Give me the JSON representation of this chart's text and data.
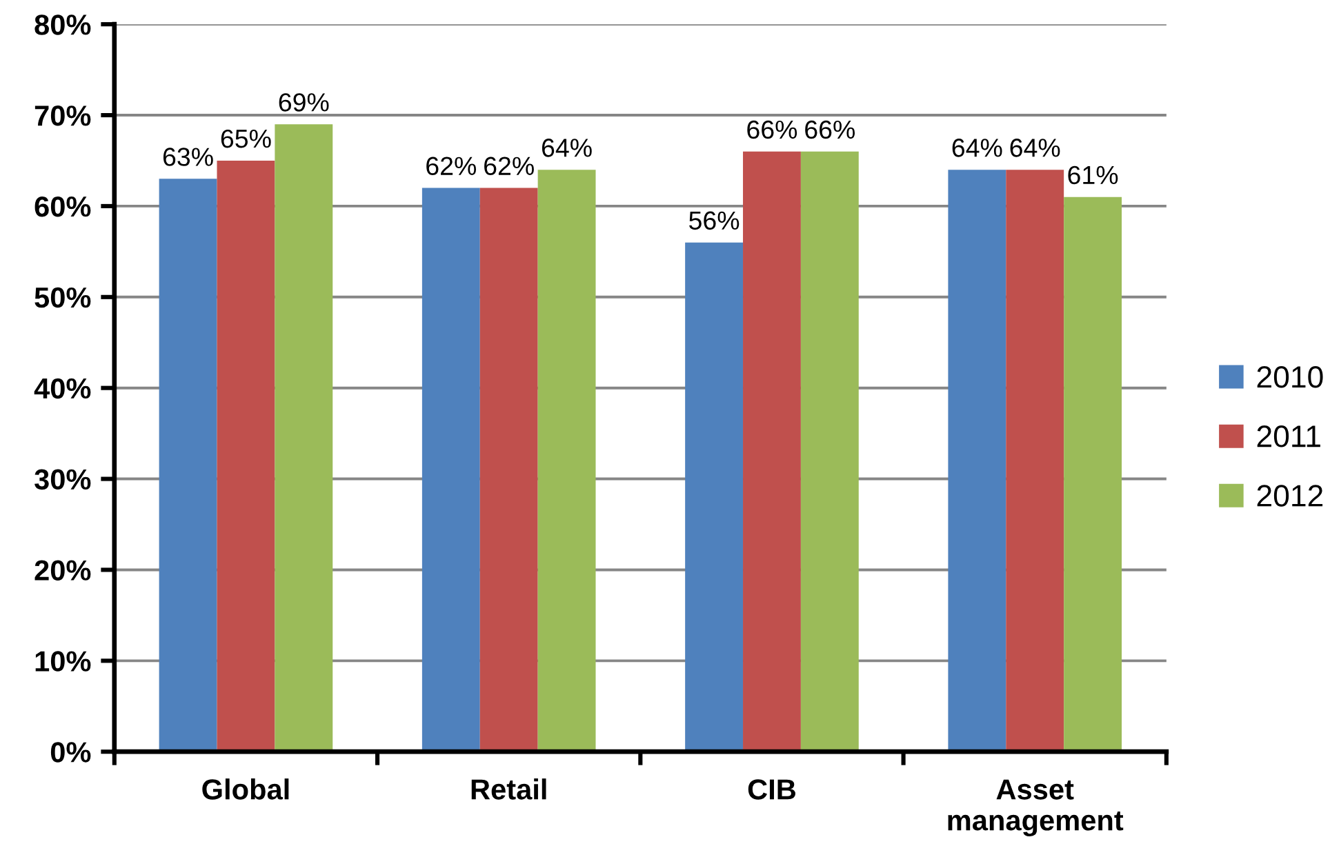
{
  "chart_data": {
    "type": "bar",
    "categories": [
      "Global",
      "Retail",
      "CIB",
      "Asset\nmanagement"
    ],
    "series": [
      {
        "name": "2010",
        "color": "#4f81bd",
        "values": [
          63,
          62,
          56,
          64
        ],
        "value_labels": [
          "63%",
          "62%",
          "56%",
          "64%"
        ]
      },
      {
        "name": "2011",
        "color": "#c0504d",
        "values": [
          65,
          62,
          66,
          64
        ],
        "value_labels": [
          "65%",
          "62%",
          "66%",
          "64%"
        ]
      },
      {
        "name": "2012",
        "color": "#9bbb59",
        "values": [
          69,
          64,
          66,
          61
        ],
        "value_labels": [
          "69%",
          "64%",
          "66%",
          "61%"
        ]
      }
    ],
    "ylim": [
      0,
      80
    ],
    "yticks": [
      {
        "value": 0,
        "label": "0%"
      },
      {
        "value": 10,
        "label": "10%"
      },
      {
        "value": 20,
        "label": "20%"
      },
      {
        "value": 30,
        "label": "30%"
      },
      {
        "value": 40,
        "label": "40%"
      },
      {
        "value": 50,
        "label": "50%"
      },
      {
        "value": 60,
        "label": "60%"
      },
      {
        "value": 70,
        "label": "70%"
      },
      {
        "value": 80,
        "label": "80%"
      }
    ],
    "grid": "y",
    "legend": "right"
  }
}
